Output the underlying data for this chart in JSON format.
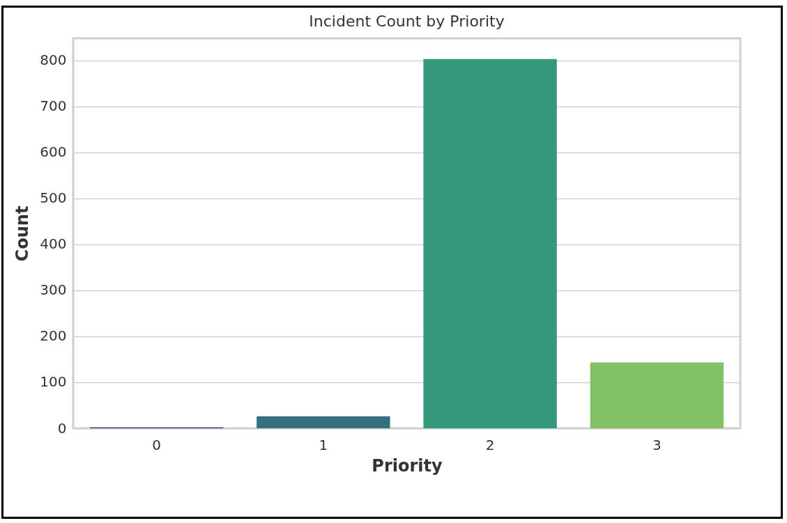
{
  "chart_data": {
    "type": "bar",
    "title": "Incident Count by Priority",
    "xlabel": "Priority",
    "ylabel": "Count",
    "categories": [
      "0",
      "1",
      "2",
      "3"
    ],
    "values": [
      2,
      26,
      803,
      143
    ],
    "colors": [
      "#482475",
      "#35707f",
      "#35977b",
      "#82c264"
    ],
    "ylim": [
      0,
      848
    ],
    "yticks": [
      0,
      100,
      200,
      300,
      400,
      500,
      600,
      700,
      800
    ],
    "grid": "y"
  }
}
